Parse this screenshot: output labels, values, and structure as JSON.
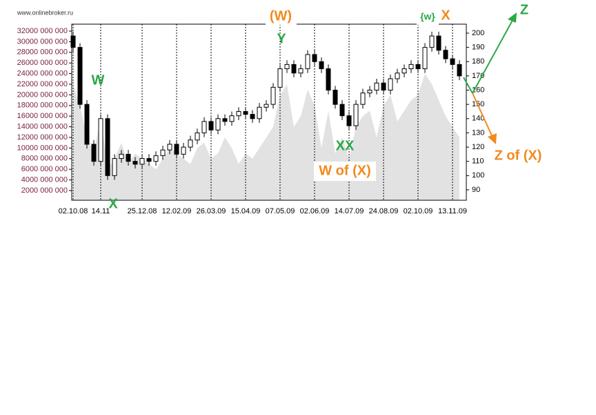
{
  "watermark": "www.onlinebroker.ru",
  "chart_data": {
    "type": "candlestick",
    "categories": [
      "02.10.08",
      null,
      null,
      null,
      "14.11",
      null,
      null,
      null,
      null,
      null,
      "25.12.08",
      null,
      null,
      null,
      null,
      "12.02.09",
      null,
      null,
      null,
      null,
      "26.03.09",
      null,
      null,
      null,
      null,
      "15.04.09",
      null,
      null,
      null,
      null,
      "07.05.09",
      null,
      null,
      null,
      null,
      "02.06.09",
      null,
      null,
      null,
      null,
      "14.07.09",
      null,
      null,
      null,
      null,
      "24.08.09",
      null,
      null,
      null,
      null,
      "02.10.09",
      null,
      null,
      null,
      null,
      "13.11.09",
      null
    ],
    "ohlc": {
      "axis": "y2",
      "open": [
        198,
        190,
        150,
        122,
        110,
        140,
        100,
        112,
        115,
        110,
        108,
        112,
        110,
        114,
        118,
        122,
        115,
        120,
        125,
        130,
        138,
        132,
        140,
        138,
        142,
        145,
        143,
        140,
        148,
        150,
        162,
        175,
        178,
        172,
        175,
        185,
        180,
        175,
        160,
        150,
        142,
        135,
        150,
        158,
        160,
        165,
        160,
        168,
        172,
        175,
        178,
        175,
        190,
        198,
        188,
        182,
        178
      ],
      "high": [
        201,
        193,
        153,
        125,
        143,
        143,
        115,
        118,
        118,
        113,
        115,
        115,
        117,
        121,
        125,
        125,
        123,
        128,
        133,
        141,
        141,
        143,
        143,
        145,
        148,
        148,
        146,
        151,
        153,
        165,
        178,
        181,
        181,
        178,
        188,
        188,
        183,
        178,
        163,
        153,
        145,
        153,
        161,
        163,
        168,
        168,
        171,
        175,
        178,
        181,
        181,
        193,
        201,
        201,
        191,
        185,
        181
      ],
      "low": [
        187,
        147,
        119,
        107,
        107,
        97,
        97,
        109,
        107,
        105,
        105,
        107,
        107,
        111,
        115,
        112,
        112,
        117,
        122,
        127,
        129,
        129,
        135,
        135,
        139,
        140,
        137,
        137,
        145,
        147,
        159,
        172,
        169,
        169,
        172,
        177,
        172,
        157,
        147,
        139,
        132,
        132,
        147,
        155,
        157,
        157,
        157,
        165,
        169,
        172,
        172,
        172,
        187,
        185,
        179,
        175,
        167
      ],
      "close": [
        190,
        150,
        122,
        110,
        140,
        100,
        112,
        115,
        110,
        108,
        112,
        110,
        114,
        118,
        122,
        115,
        120,
        125,
        130,
        138,
        132,
        140,
        138,
        142,
        145,
        143,
        140,
        148,
        150,
        162,
        175,
        178,
        172,
        175,
        185,
        180,
        175,
        160,
        150,
        142,
        135,
        150,
        158,
        160,
        165,
        160,
        168,
        172,
        175,
        178,
        175,
        190,
        198,
        188,
        182,
        178,
        170
      ],
      "up_color": "#ffffff",
      "down_color": "#000000"
    },
    "volume": {
      "color": "#e2e2e2",
      "values": [
        22000000000,
        18000000000,
        12000000000,
        9000000000,
        16000000000,
        6000000000,
        8000000000,
        11000000000,
        7000000000,
        9000000000,
        8000000000,
        7000000000,
        6000000000,
        8000000000,
        10000000000,
        9000000000,
        8000000000,
        7000000000,
        10000000000,
        11000000000,
        8000000000,
        9000000000,
        12000000000,
        10000000000,
        7000000000,
        9000000000,
        8000000000,
        10000000000,
        12000000000,
        14000000000,
        20000000000,
        22000000000,
        14000000000,
        16000000000,
        21000000000,
        18000000000,
        10000000000,
        17000000000,
        9000000000,
        12000000000,
        8000000000,
        14000000000,
        16000000000,
        17000000000,
        12000000000,
        18000000000,
        20000000000,
        15000000000,
        17000000000,
        19000000000,
        20000000000,
        24000000000,
        22000000000,
        19000000000,
        16000000000,
        14000000000,
        12000000000
      ]
    },
    "ylim": [
      180000000,
      33300000000
    ],
    "yticks": [
      {
        "value": 2000000000,
        "label": "2000 000 000"
      },
      {
        "value": 4000000000,
        "label": "4000 000 000"
      },
      {
        "value": 6000000000,
        "label": "6000 000 000"
      },
      {
        "value": 8000000000,
        "label": "8000 000 000"
      },
      {
        "value": 10000000000,
        "label": "10000 000 000"
      },
      {
        "value": 12000000000,
        "label": "12000 000 000"
      },
      {
        "value": 14000000000,
        "label": "14000 000 000"
      },
      {
        "value": 16000000000,
        "label": "16000 000 000"
      },
      {
        "value": 18000000000,
        "label": "18000 000 000"
      },
      {
        "value": 20000000000,
        "label": "20000 000 000"
      },
      {
        "value": 22000000000,
        "label": "22000 000 000"
      },
      {
        "value": 24000000000,
        "label": "24000 000 000"
      },
      {
        "value": 26000000000,
        "label": "26000 000 000"
      },
      {
        "value": 28000000000,
        "label": "28000 000 000"
      },
      {
        "value": 30000000000,
        "label": "30000 000 000"
      },
      {
        "value": 32000000000,
        "label": "32000 000 000"
      }
    ],
    "y2lim": [
      82.7,
      206.3
    ],
    "y2ticks": [
      90,
      100,
      110,
      120,
      130,
      140,
      150,
      160,
      170,
      180,
      190,
      200
    ],
    "grid": "x",
    "annotations": [
      "(W)",
      "Y",
      "W",
      "X",
      "XX",
      "W of (X)",
      "{w}",
      "X",
      "Z",
      "Z of (X)"
    ]
  }
}
